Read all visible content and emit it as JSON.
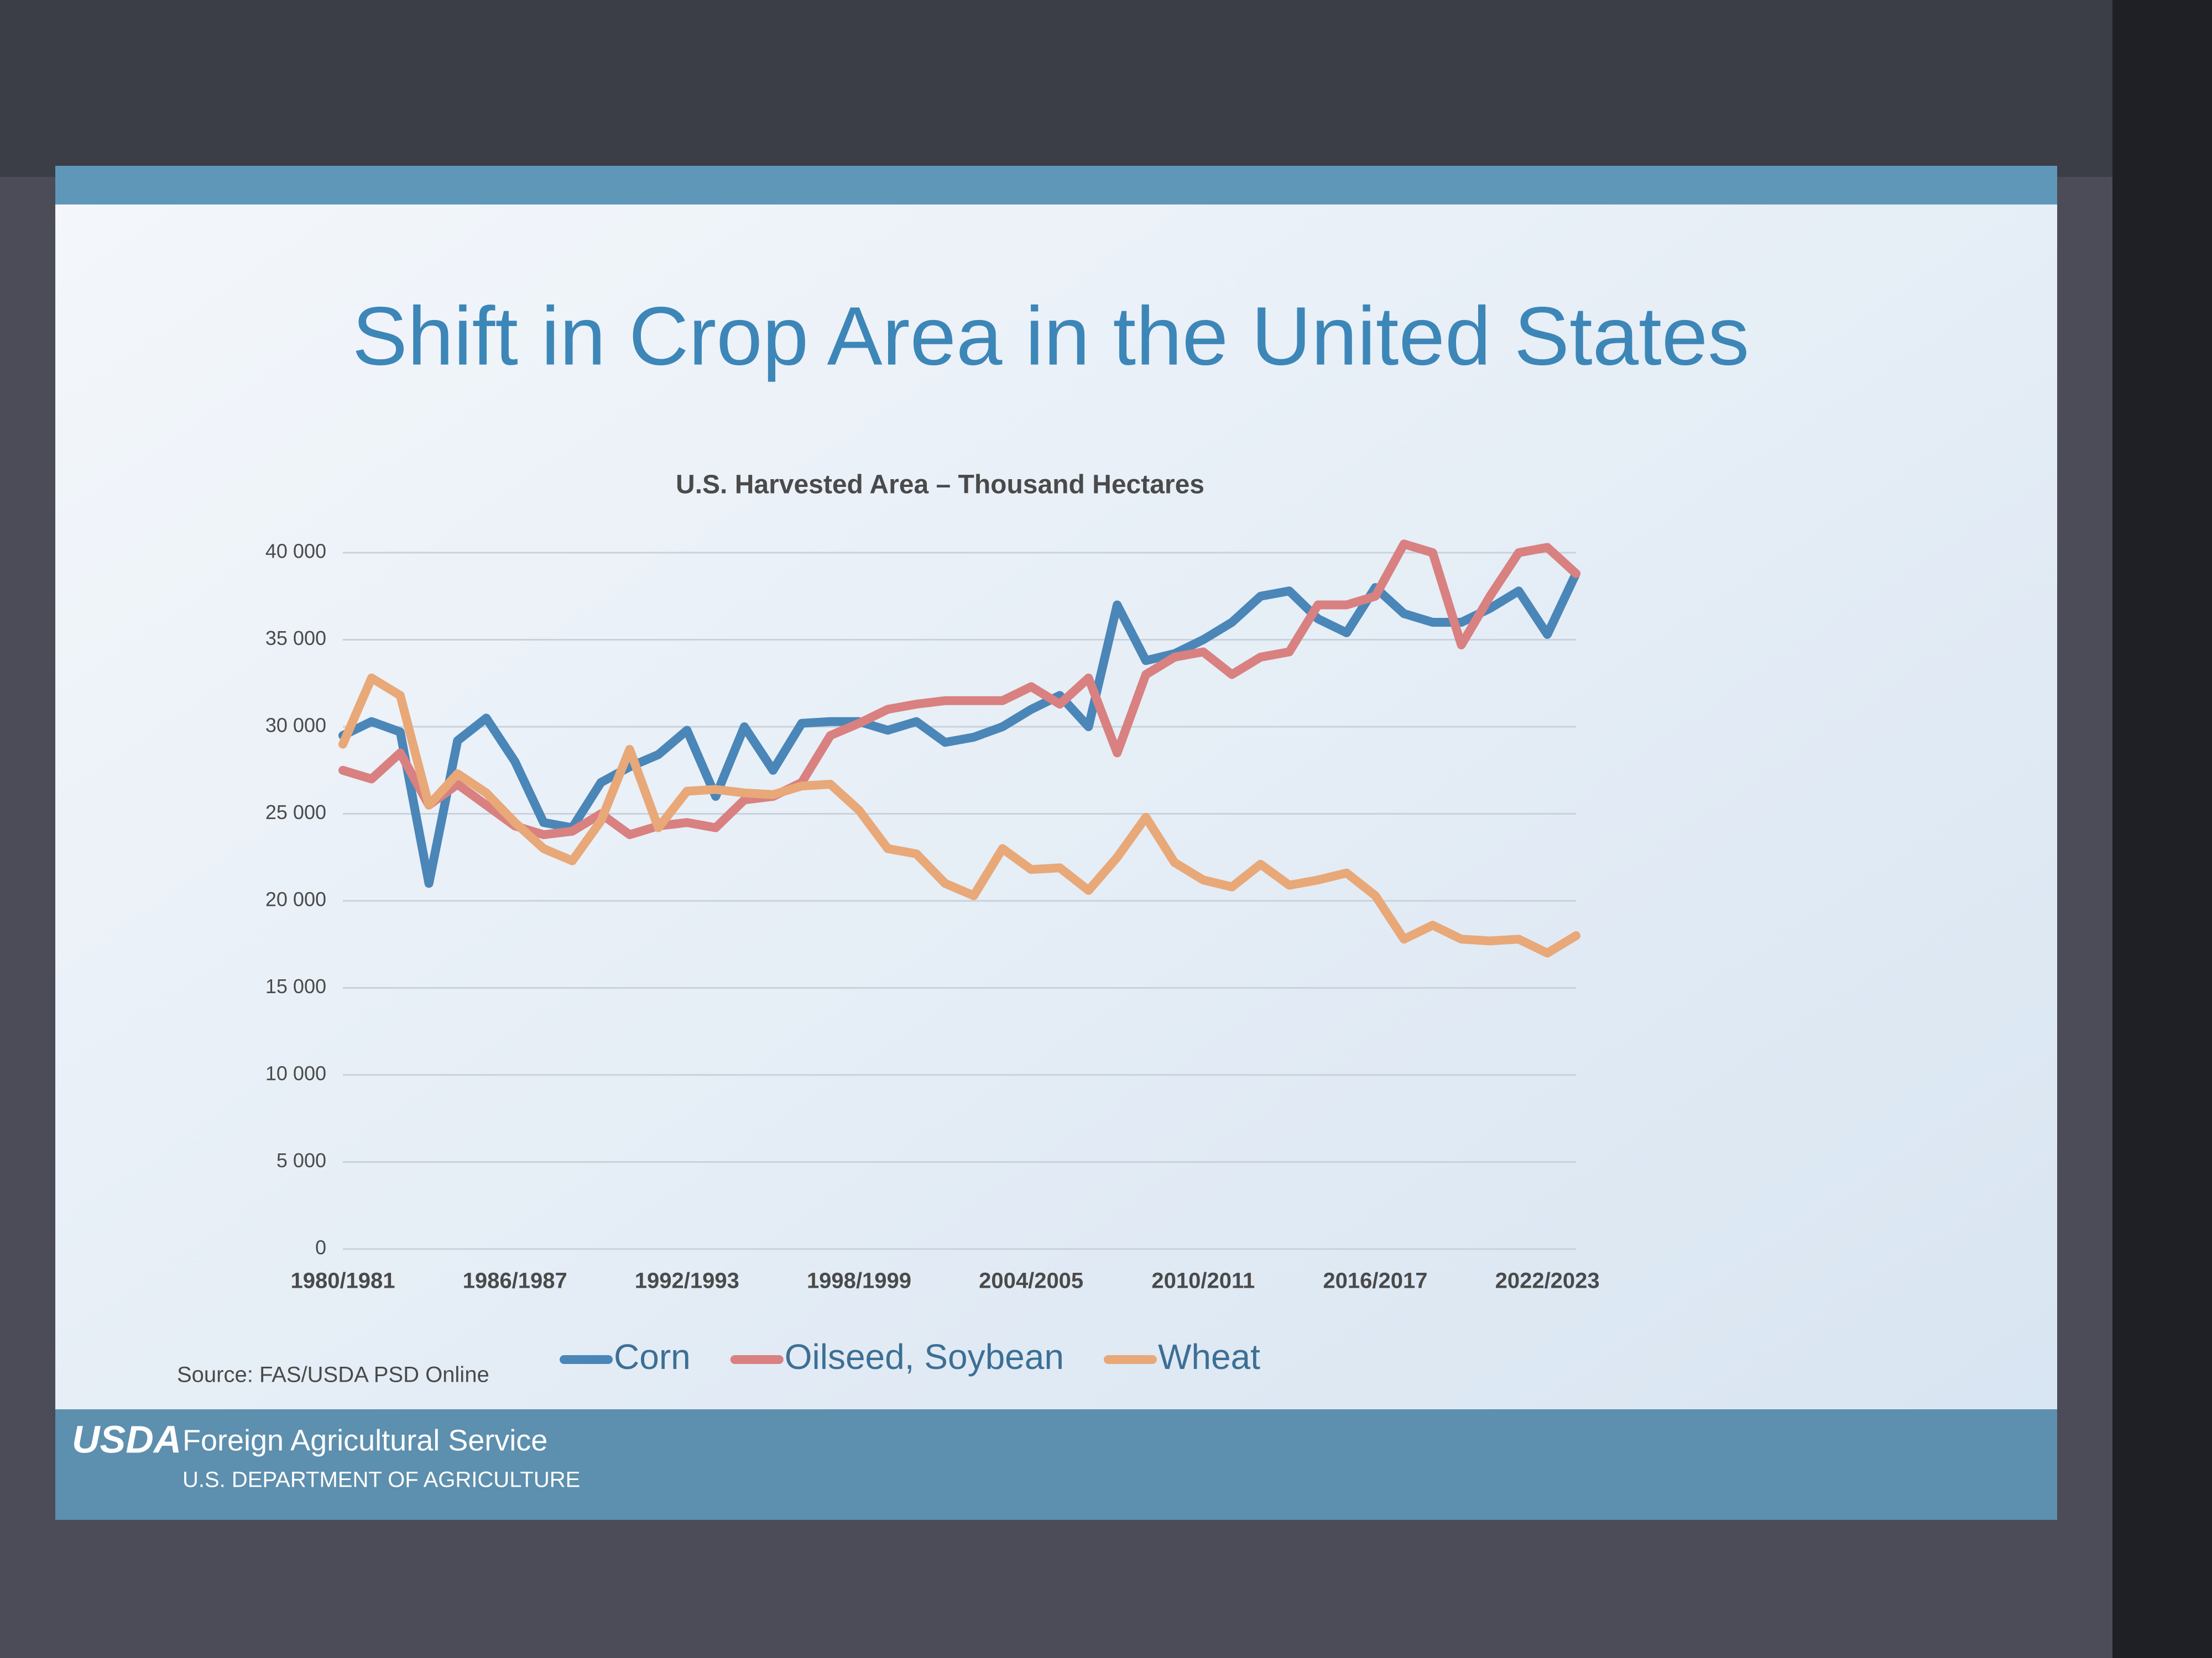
{
  "chart_data": {
    "type": "line",
    "title": "Shift in Crop Area in the United States",
    "subtitle": "U.S. Harvested Area – Thousand Hectares",
    "source": "Source: FAS/USDA PSD Online",
    "categories": [
      "1980/1981",
      null,
      null,
      null,
      null,
      null,
      "1986/1987",
      null,
      null,
      null,
      null,
      null,
      "1992/1993",
      null,
      null,
      null,
      null,
      null,
      "1998/1999",
      null,
      null,
      null,
      null,
      null,
      "2004/2005",
      null,
      null,
      null,
      null,
      null,
      "2010/2011",
      null,
      null,
      null,
      null,
      null,
      "2016/2017",
      null,
      null,
      null,
      null,
      null,
      "2022/2023",
      null
    ],
    "series": [
      {
        "name": "Corn",
        "color": "#4a86b8",
        "values": [
          29500,
          30300,
          29700,
          21000,
          29200,
          30500,
          28000,
          24500,
          24200,
          26800,
          27700,
          28400,
          29800,
          26000,
          30000,
          27500,
          30200,
          30300,
          30300,
          29800,
          30300,
          29100,
          29400,
          30000,
          31000,
          31800,
          30000,
          37000,
          33800,
          34200,
          35000,
          36000,
          37500,
          37800,
          36200,
          35400,
          38000,
          36500,
          36000,
          36000,
          36800,
          37800,
          35300,
          38800
        ]
      },
      {
        "name": "Oilseed, Soybean",
        "color": "#d98080",
        "values": [
          27500,
          27000,
          28500,
          25500,
          26700,
          25500,
          24300,
          23800,
          24000,
          25000,
          23800,
          24300,
          24500,
          24200,
          25800,
          26000,
          26800,
          29500,
          30200,
          31000,
          31300,
          31500,
          31500,
          31500,
          32300,
          31300,
          32800,
          28500,
          33000,
          34000,
          34300,
          33000,
          34000,
          34300,
          37000,
          37000,
          37500,
          40500,
          40000,
          34700,
          37500,
          40000,
          40300,
          38800
        ]
      },
      {
        "name": "Wheat",
        "color": "#e8a878",
        "values": [
          29000,
          32800,
          31800,
          25500,
          27300,
          26200,
          24500,
          23000,
          22300,
          24600,
          28700,
          24200,
          26300,
          26400,
          26200,
          26100,
          26600,
          26700,
          25200,
          23000,
          22700,
          21000,
          20300,
          23000,
          21800,
          21900,
          20600,
          22500,
          24800,
          22200,
          21200,
          20800,
          22100,
          20900,
          21200,
          21600,
          20300,
          17800,
          18600,
          17800,
          17700,
          17800,
          17000,
          18000
        ]
      }
    ],
    "ylim": [
      0,
      40000
    ],
    "yticks": [
      0,
      {
        "value": 5000,
        "label": "5 000"
      },
      {
        "value": 10000,
        "label": "10 000"
      },
      {
        "value": 15000,
        "label": "15 000"
      },
      {
        "value": 20000,
        "label": "20 000"
      },
      {
        "value": 25000,
        "label": "25 000"
      },
      {
        "value": 30000,
        "label": "30 000"
      },
      {
        "value": 35000,
        "label": "35 000"
      },
      {
        "value": 40000,
        "label": "40 000"
      }
    ],
    "grid": true,
    "legend": "bottom"
  },
  "footer": {
    "logo": "USDA",
    "agency": "Foreign Agricultural Service",
    "department": "U.S. DEPARTMENT OF AGRICULTURE"
  }
}
